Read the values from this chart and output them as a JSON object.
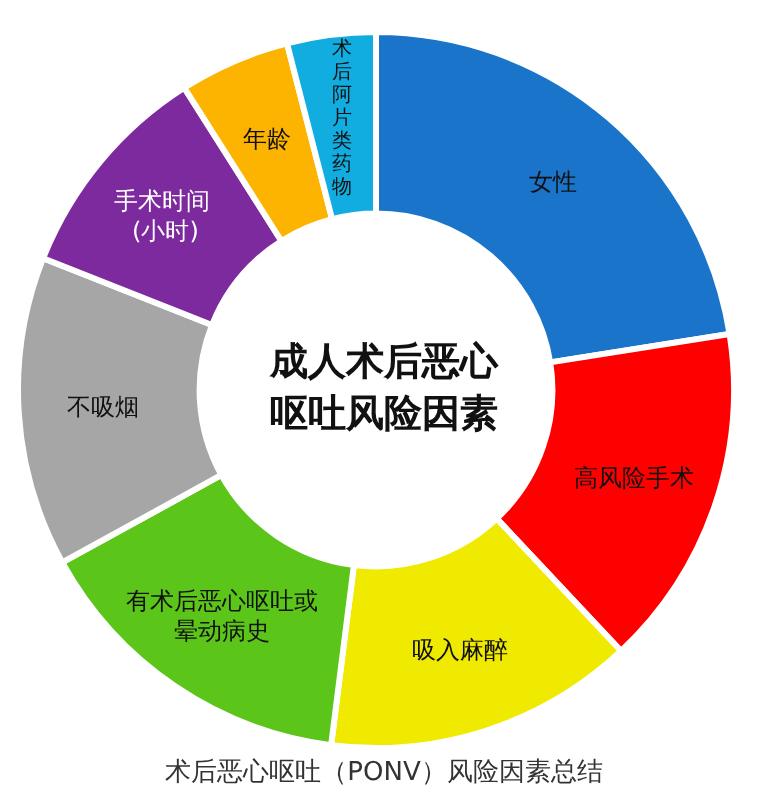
{
  "chart_data": {
    "type": "donut",
    "title": "成人术后恶心呕吐风险因素",
    "categories": [
      "女性",
      "高风险手术",
      "吸入麻醉",
      "有术后恶心呕吐或晕动病史",
      "不吸烟",
      "手术时间 (小时)",
      "年龄",
      "术后阿片类药物"
    ],
    "values": [
      22.5,
      15.5,
      14,
      15,
      14,
      10,
      5,
      4
    ],
    "colors": [
      "#1a74c9",
      "#ff0000",
      "#f0ea00",
      "#5cc51a",
      "#a6a6a6",
      "#7d2a9e",
      "#fdb400",
      "#12ade0"
    ],
    "annotations": [
      "术后恶心呕吐（PONV）风险因素总结"
    ],
    "legend": false
  }
}
